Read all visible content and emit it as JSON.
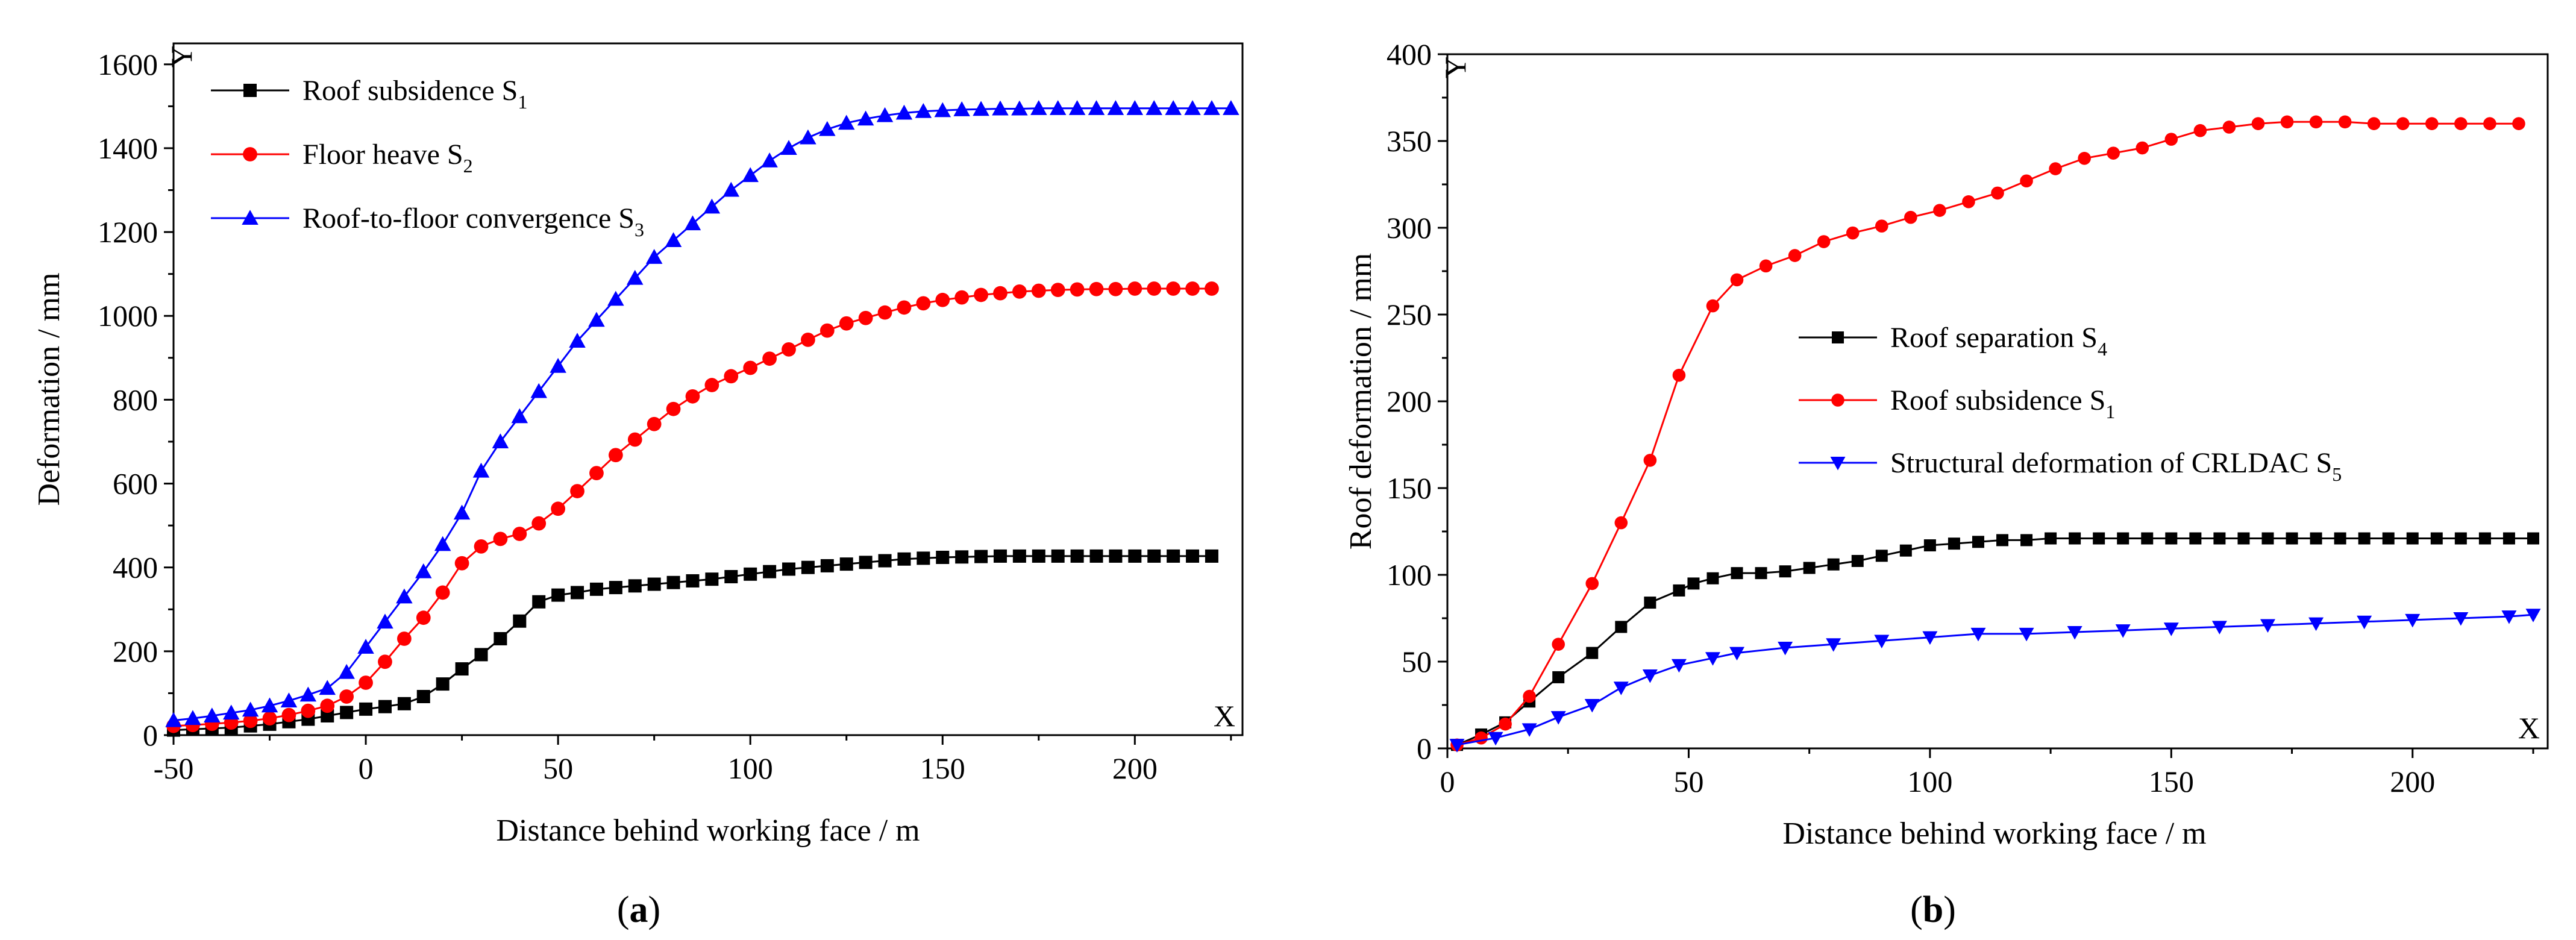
{
  "chart_data": [
    {
      "type": "line",
      "panel_label": "(a)",
      "panel_letter": "a",
      "xlabel": "Distance behind working face / m",
      "ylabel": "Deformation / mm",
      "x_axis_letter": "X",
      "y_axis_letter": "Y",
      "xlim": [
        -50,
        228
      ],
      "ylim": [
        0,
        1650
      ],
      "xticks": [
        -50,
        0,
        50,
        100,
        150,
        200
      ],
      "yticks": [
        0,
        200,
        400,
        600,
        800,
        1000,
        1200,
        1400,
        1600
      ],
      "legend_position": "top-left",
      "series": [
        {
          "name": "Roof subsidence S1",
          "legend_main": "Roof subsidence S",
          "legend_sub": "1",
          "color": "#000000",
          "marker": "square",
          "x": [
            -50,
            -45,
            -40,
            -35,
            -30,
            -25,
            -20,
            -15,
            -10,
            -5,
            0,
            5,
            10,
            15,
            20,
            25,
            30,
            35,
            40,
            45,
            50,
            55,
            60,
            65,
            70,
            75,
            80,
            85,
            90,
            95,
            100,
            105,
            110,
            115,
            120,
            125,
            130,
            135,
            140,
            145,
            150,
            155,
            160,
            165,
            170,
            175,
            180,
            185,
            190,
            195,
            200,
            205,
            210,
            215,
            220
          ],
          "y": [
            12,
            14,
            16,
            18,
            22,
            26,
            32,
            38,
            46,
            54,
            62,
            68,
            75,
            92,
            122,
            158,
            192,
            230,
            272,
            318,
            334,
            340,
            348,
            352,
            356,
            360,
            364,
            368,
            372,
            378,
            384,
            390,
            396,
            400,
            404,
            408,
            412,
            416,
            420,
            422,
            424,
            425,
            426,
            427,
            427,
            427,
            427,
            427,
            427,
            427,
            427,
            427,
            427,
            427,
            427
          ]
        },
        {
          "name": "Floor heave S2",
          "legend_main": "Floor heave S",
          "legend_sub": "2",
          "color": "#ff0000",
          "marker": "circle",
          "x": [
            -50,
            -45,
            -40,
            -35,
            -30,
            -25,
            -20,
            -15,
            -10,
            -5,
            0,
            5,
            10,
            15,
            20,
            25,
            30,
            35,
            40,
            45,
            50,
            55,
            60,
            65,
            70,
            75,
            80,
            85,
            90,
            95,
            100,
            105,
            110,
            115,
            120,
            125,
            130,
            135,
            140,
            145,
            150,
            155,
            160,
            165,
            170,
            175,
            180,
            185,
            190,
            195,
            200,
            205,
            210,
            215,
            220
          ],
          "y": [
            22,
            24,
            27,
            30,
            34,
            40,
            48,
            58,
            70,
            92,
            125,
            175,
            230,
            280,
            340,
            410,
            450,
            468,
            480,
            505,
            540,
            582,
            625,
            668,
            705,
            742,
            778,
            808,
            835,
            856,
            876,
            898,
            920,
            943,
            965,
            982,
            995,
            1008,
            1020,
            1030,
            1038,
            1044,
            1050,
            1054,
            1058,
            1060,
            1062,
            1063,
            1064,
            1064,
            1065,
            1065,
            1065,
            1065,
            1065
          ]
        },
        {
          "name": "Roof-to-floor convergence S3",
          "legend_main": "Roof-to-floor convergence S",
          "legend_sub": "3",
          "color": "#0000ff",
          "marker": "triangle",
          "x": [
            -50,
            -45,
            -40,
            -35,
            -30,
            -25,
            -20,
            -15,
            -10,
            -5,
            0,
            5,
            10,
            15,
            20,
            25,
            30,
            35,
            40,
            45,
            50,
            55,
            60,
            65,
            70,
            75,
            80,
            85,
            90,
            95,
            100,
            105,
            110,
            115,
            120,
            125,
            130,
            135,
            140,
            145,
            150,
            155,
            160,
            165,
            170,
            175,
            180,
            185,
            190,
            195,
            200,
            205,
            210,
            215,
            220,
            225
          ],
          "y": [
            35,
            40,
            46,
            53,
            60,
            70,
            82,
            96,
            112,
            150,
            210,
            270,
            330,
            390,
            455,
            530,
            630,
            700,
            760,
            820,
            880,
            940,
            990,
            1040,
            1090,
            1140,
            1180,
            1220,
            1260,
            1300,
            1335,
            1370,
            1400,
            1425,
            1445,
            1460,
            1470,
            1478,
            1484,
            1488,
            1490,
            1492,
            1493,
            1494,
            1494,
            1495,
            1495,
            1495,
            1495,
            1495,
            1495,
            1495,
            1495,
            1495,
            1495,
            1495
          ]
        }
      ]
    },
    {
      "type": "line",
      "panel_label": "(b)",
      "panel_letter": "b",
      "xlabel": "Distance behind working face / m",
      "ylabel": "Roof deformation / mm",
      "x_axis_letter": "X",
      "y_axis_letter": "Y",
      "xlim": [
        0,
        228
      ],
      "ylim": [
        0,
        400
      ],
      "xticks": [
        0,
        50,
        100,
        150,
        200
      ],
      "yticks": [
        0,
        50,
        100,
        150,
        200,
        250,
        300,
        350,
        400
      ],
      "legend_position": "center-right",
      "series": [
        {
          "name": "Roof separation S4",
          "legend_main": "Roof separation S",
          "legend_sub": "4",
          "color": "#000000",
          "marker": "square",
          "x": [
            2,
            7,
            12,
            17,
            23,
            30,
            36,
            42,
            48,
            51,
            55,
            60,
            65,
            70,
            75,
            80,
            85,
            90,
            95,
            100,
            105,
            110,
            115,
            120,
            125,
            130,
            135,
            140,
            145,
            150,
            155,
            160,
            165,
            170,
            175,
            180,
            185,
            190,
            195,
            200,
            205,
            210,
            215,
            220,
            225
          ],
          "y": [
            2,
            8,
            15,
            27,
            41,
            55,
            70,
            84,
            91,
            95,
            98,
            101,
            101,
            102,
            104,
            106,
            108,
            111,
            114,
            117,
            118,
            119,
            120,
            120,
            121,
            121,
            121,
            121,
            121,
            121,
            121,
            121,
            121,
            121,
            121,
            121,
            121,
            121,
            121,
            121,
            121,
            121,
            121,
            121,
            121
          ]
        },
        {
          "name": "Roof subsidence S1",
          "legend_main": "Roof subsidence S",
          "legend_sub": "1",
          "color": "#ff0000",
          "marker": "circle",
          "x": [
            2,
            7,
            12,
            17,
            23,
            30,
            36,
            42,
            48,
            55,
            60,
            66,
            72,
            78,
            84,
            90,
            96,
            102,
            108,
            114,
            120,
            126,
            132,
            138,
            144,
            150,
            156,
            162,
            168,
            174,
            180,
            186,
            192,
            198,
            204,
            210,
            216,
            222
          ],
          "y": [
            2,
            6,
            14,
            30,
            60,
            95,
            130,
            166,
            215,
            255,
            270,
            278,
            284,
            292,
            297,
            301,
            306,
            310,
            315,
            320,
            327,
            334,
            340,
            343,
            346,
            351,
            356,
            358,
            360,
            361,
            361,
            361,
            360,
            360,
            360,
            360,
            360,
            360
          ]
        },
        {
          "name": "Structural deformation of CRLDAC S5",
          "legend_main": "Structural deformation of CRLDAC S",
          "legend_sub": "5",
          "color": "#0000ff",
          "marker": "triangle-down",
          "x": [
            2,
            10,
            17,
            23,
            30,
            36,
            42,
            48,
            55,
            60,
            70,
            80,
            90,
            100,
            110,
            120,
            130,
            140,
            150,
            160,
            170,
            180,
            190,
            200,
            210,
            220,
            225
          ],
          "y": [
            2,
            6,
            11,
            18,
            25,
            35,
            42,
            48,
            52,
            55,
            58,
            60,
            62,
            64,
            66,
            66,
            67,
            68,
            69,
            70,
            71,
            72,
            73,
            74,
            75,
            76,
            77
          ]
        }
      ]
    }
  ]
}
